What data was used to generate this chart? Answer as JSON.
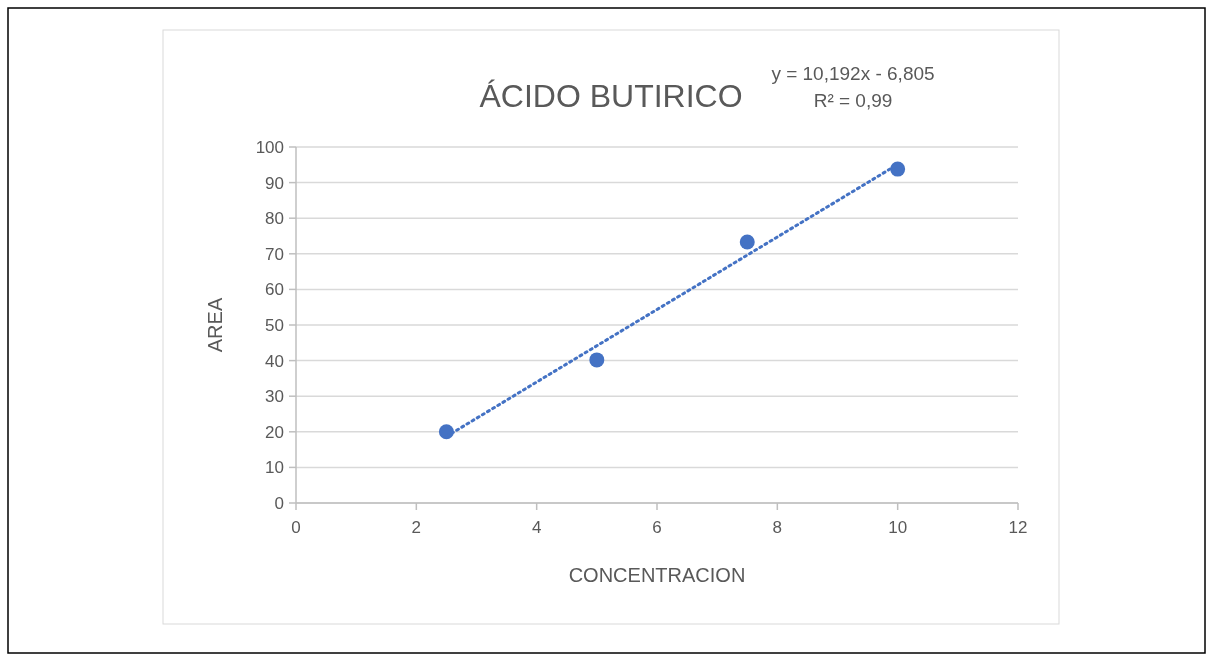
{
  "chart_data": {
    "type": "scatter",
    "title": "ÁCIDO BUTIRICO",
    "xlabel": "CONCENTRACION",
    "ylabel": "AREA",
    "annotations": [
      "y = 10,192x - 6,805",
      "R² = 0,99"
    ],
    "series": [
      {
        "color": "#4472c4",
        "x": [
          2.5,
          5,
          7.5,
          10
        ],
        "values": [
          20,
          40.2,
          73.3,
          93.8
        ],
        "marker": "circle"
      },
      {
        "type": "line",
        "color": "#4472c4",
        "x": [
          2.5,
          10
        ],
        "values": [
          18.7,
          95.1
        ],
        "line_style": "dotted"
      }
    ],
    "xlim": [
      0,
      12
    ],
    "xticks": [
      0,
      2,
      4,
      6,
      8,
      10,
      12
    ],
    "ylim": [
      0,
      100
    ],
    "yticks": [
      0,
      10,
      20,
      30,
      40,
      50,
      60,
      70,
      80,
      90,
      100
    ],
    "grid": "y"
  }
}
